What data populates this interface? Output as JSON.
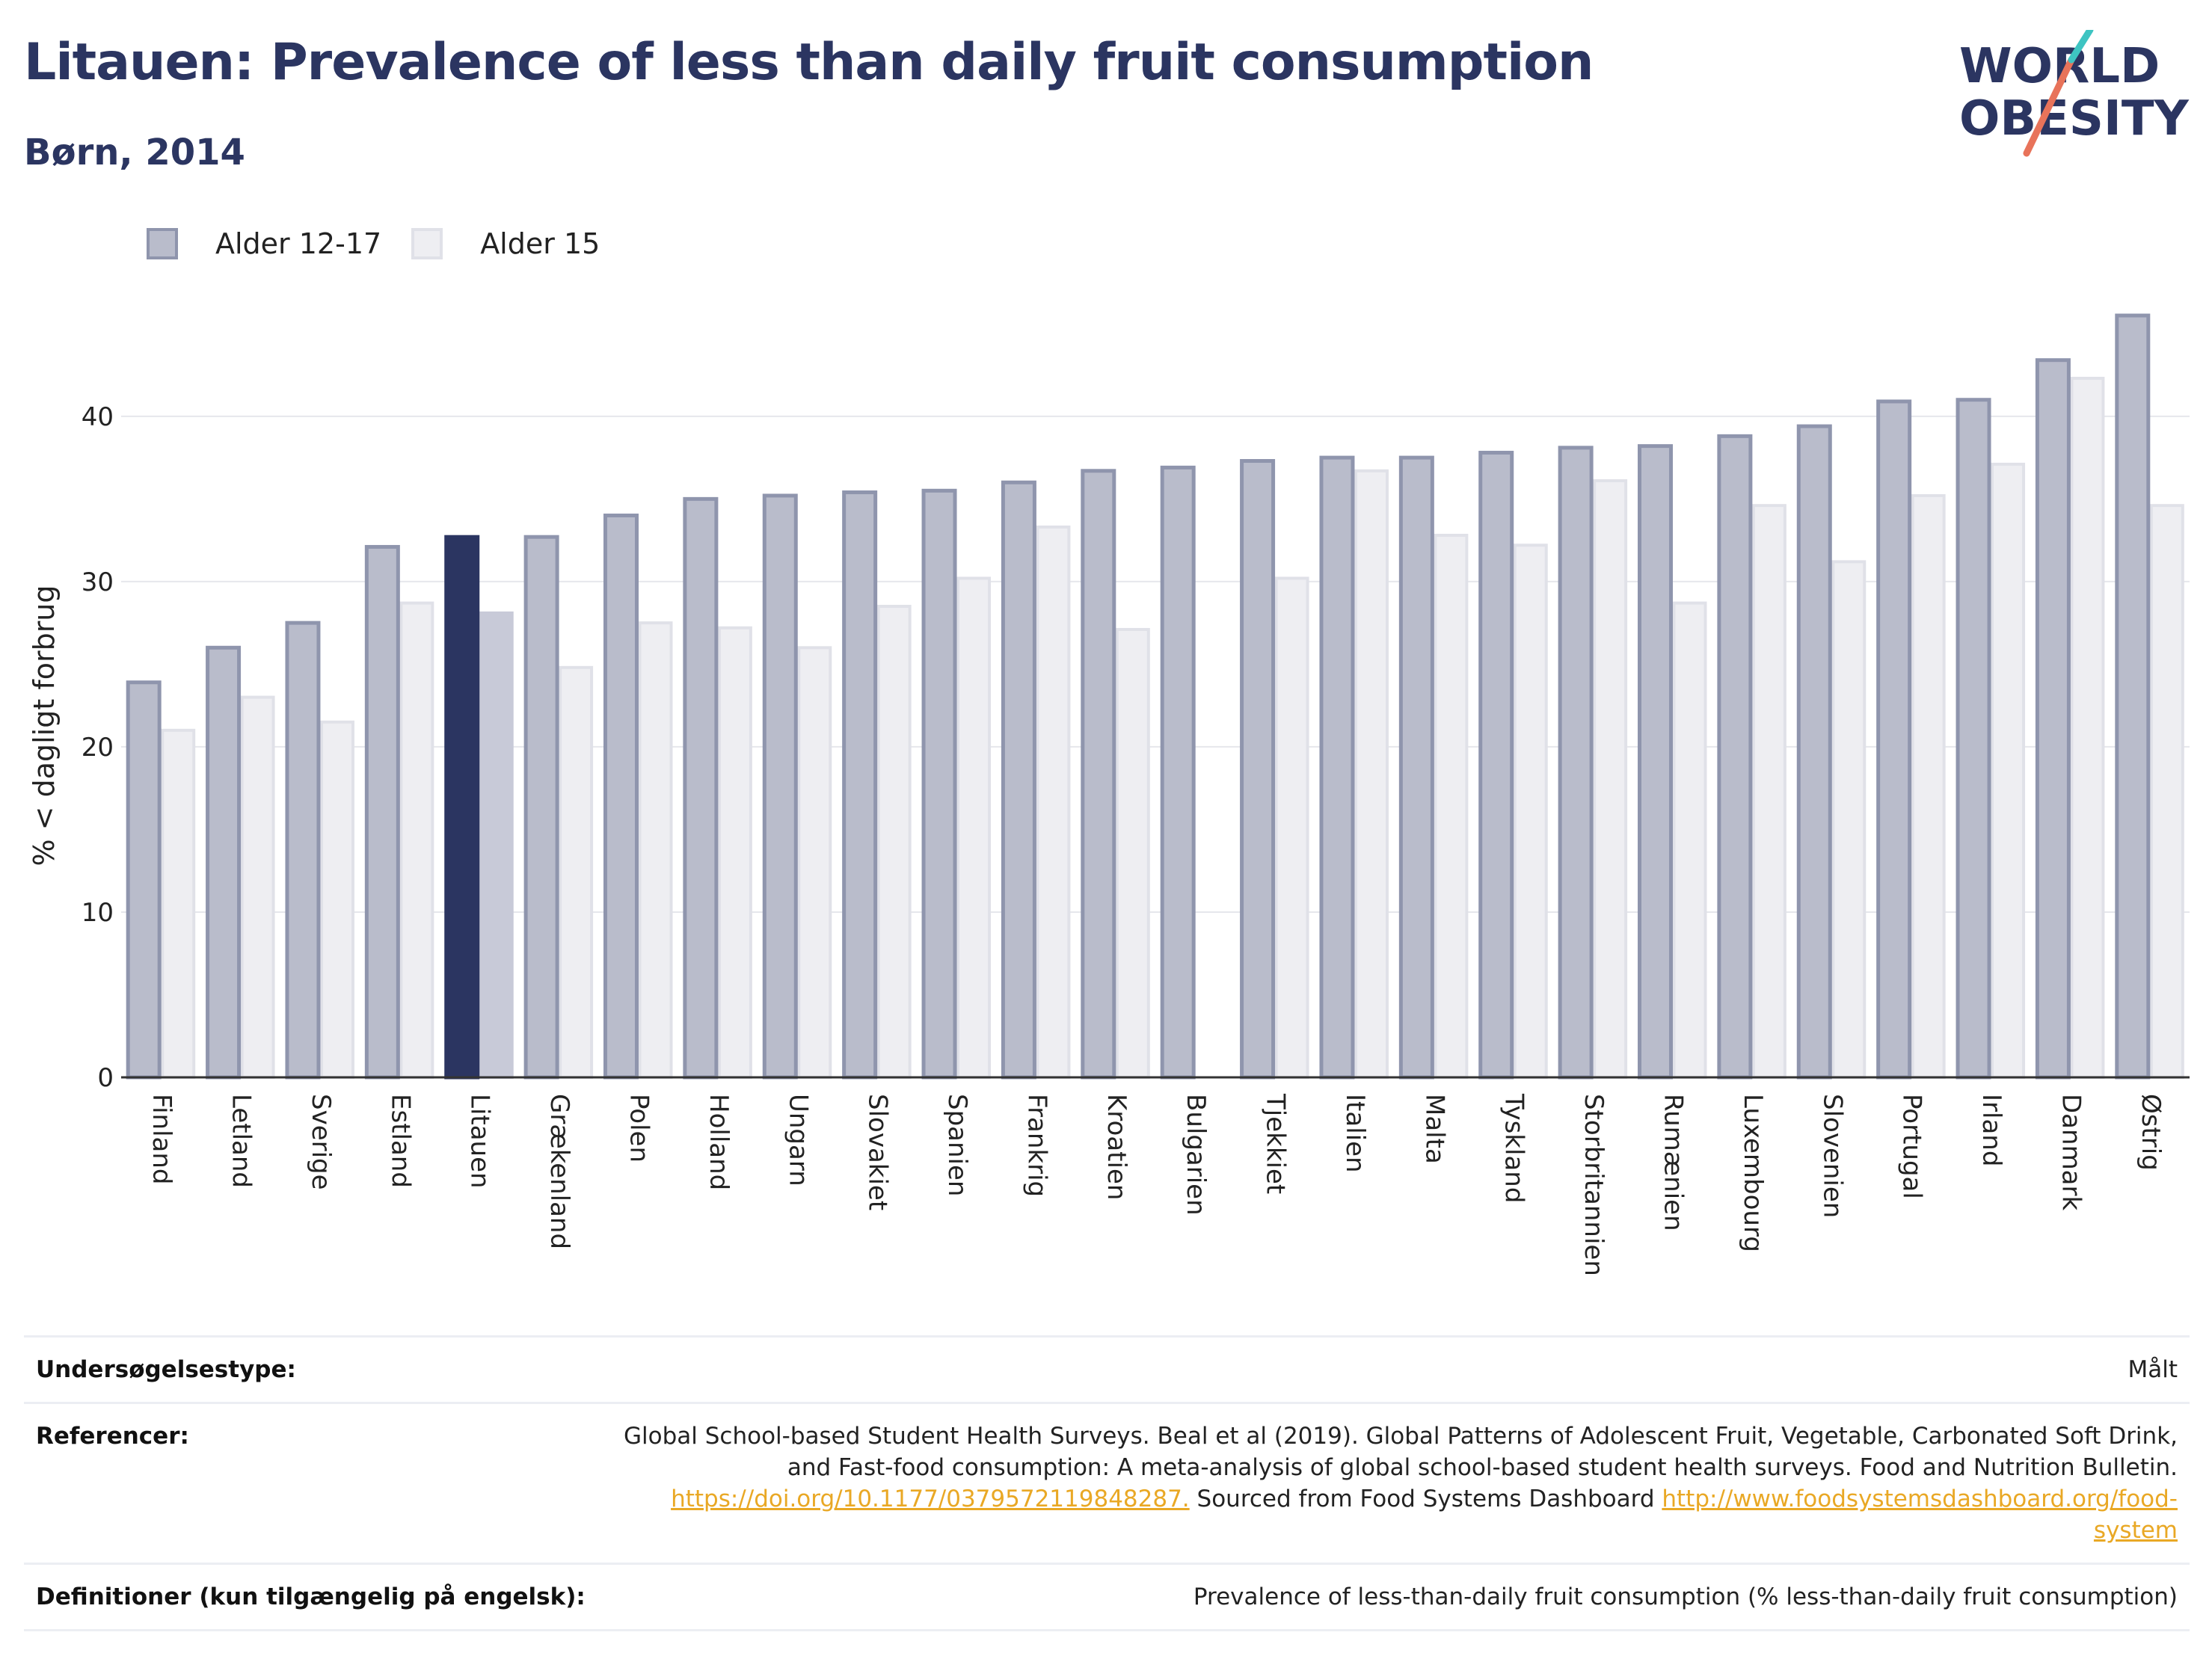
{
  "header": {
    "title": "Litauen: Prevalence of less than daily fruit consumption",
    "subtitle": "Børn, 2014"
  },
  "logo": {
    "line1": "WORLD",
    "line2": "OBESITY"
  },
  "legend": [
    {
      "label": "Alder 12-17",
      "color": "#b9bccb"
    },
    {
      "label": "Alder 15",
      "color": "#eeeef2"
    }
  ],
  "colors": {
    "series1_fill": "#b9bccb",
    "series1_stroke": "#8f95ad",
    "series2_fill": "#eeeef2",
    "series2_stroke": "#e0e1e8",
    "highlight1": "#2b3561",
    "highlight2": "#c8cad8",
    "title": "#2b3561",
    "link": "#e9a825"
  },
  "chart_data": {
    "type": "bar",
    "ylabel": "% < dagligt forbrug",
    "xlabel": "",
    "ylim": [
      0,
      48
    ],
    "yticks": [
      0,
      10,
      20,
      30,
      40
    ],
    "grid": true,
    "highlight": "Litauen",
    "categories": [
      "Finland",
      "Letland",
      "Sverige",
      "Estland",
      "Litauen",
      "Grækenland",
      "Polen",
      "Holland",
      "Ungarn",
      "Slovakiet",
      "Spanien",
      "Frankrig",
      "Kroatien",
      "Bulgarien",
      "Tjekkiet",
      "Italien",
      "Malta",
      "Tyskland",
      "Storbritannien",
      "Rumænien",
      "Luxembourg",
      "Slovenien",
      "Portugal",
      "Irland",
      "Danmark",
      "Østrig"
    ],
    "series": [
      {
        "name": "Alder 12-17",
        "values": [
          23.9,
          26.0,
          27.5,
          32.1,
          32.7,
          32.7,
          34.0,
          35.0,
          35.2,
          35.4,
          35.5,
          36.0,
          36.7,
          36.9,
          37.3,
          37.5,
          37.5,
          37.8,
          38.1,
          38.2,
          38.8,
          39.4,
          40.9,
          41.0,
          43.4,
          46.1
        ]
      },
      {
        "name": "Alder 15",
        "values": [
          21.0,
          23.0,
          21.5,
          28.7,
          28.1,
          24.8,
          27.5,
          27.2,
          26.0,
          28.5,
          30.2,
          33.3,
          27.1,
          null,
          30.2,
          36.7,
          32.8,
          32.2,
          36.1,
          28.7,
          34.6,
          31.2,
          35.2,
          37.1,
          42.3,
          34.6
        ]
      }
    ]
  },
  "footer": [
    {
      "label": "Undersøgelsestype:",
      "value": "Målt"
    },
    {
      "label": "Referencer:",
      "value_lines": [
        "Global School-based Student Health Surveys. Beal et al (2019). Global Patterns of Adolescent Fruit, Vegetable, Carbonated Soft Drink,",
        "and Fast-food consumption: A meta-analysis of global school-based student health surveys. Food and Nutrition Bulletin."
      ],
      "link1": "https://doi.org/10.1177/0379572119848287.",
      "middle_text": " Sourced from Food Systems Dashboard ",
      "link2": "http://www.foodsystemsdashboard.org/food-system"
    },
    {
      "label": "Definitioner (kun tilgængelig på engelsk):",
      "value": "Prevalence of less-than-daily fruit consumption (% less-than-daily fruit consumption)"
    }
  ]
}
